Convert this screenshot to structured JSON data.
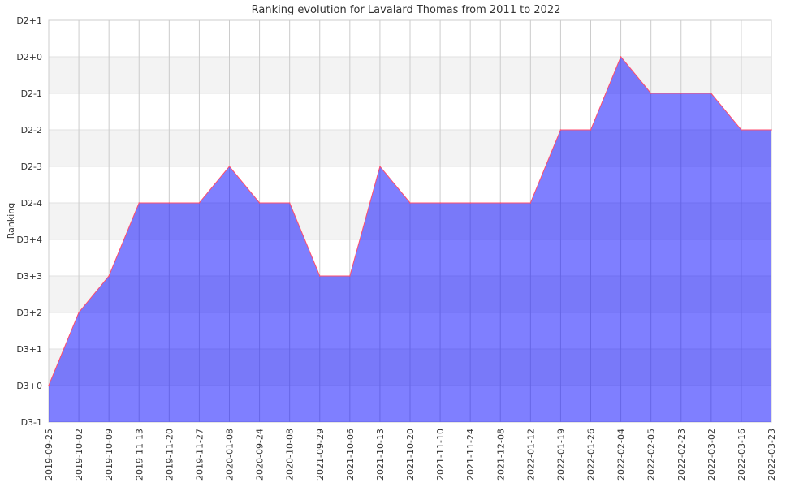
{
  "chart_data": {
    "type": "area",
    "title": "Ranking evolution for Lavalard Thomas from 2011 to 2022",
    "xlabel": "",
    "ylabel": "Ranking",
    "y_ticks": [
      "D3-1",
      "D3+0",
      "D3+1",
      "D3+2",
      "D3+3",
      "D3+4",
      "D2-4",
      "D2-3",
      "D2-2",
      "D2-1",
      "D2+0",
      "D2+1"
    ],
    "ylim": [
      0,
      11
    ],
    "grid": true,
    "categories": [
      "2019-09-25",
      "2019-10-02",
      "2019-10-09",
      "2019-11-13",
      "2019-11-20",
      "2019-11-27",
      "2020-01-08",
      "2020-09-24",
      "2020-10-08",
      "2021-09-29",
      "2021-10-06",
      "2021-10-13",
      "2021-10-20",
      "2021-11-10",
      "2021-11-24",
      "2021-12-08",
      "2022-01-12",
      "2022-01-19",
      "2022-01-26",
      "2022-02-04",
      "2022-02-05",
      "2022-02-23",
      "2022-03-02",
      "2022-03-16",
      "2022-03-23"
    ],
    "series": [
      {
        "name": "Ranking",
        "values_note_index_into_y_ticks": true,
        "values": [
          1,
          3,
          4,
          6,
          6,
          6,
          7,
          6,
          6,
          4,
          4,
          7,
          6,
          6,
          6,
          6,
          6,
          8,
          8,
          10,
          9,
          9,
          9,
          8,
          8
        ],
        "labels": [
          "D3+0",
          "D3+2",
          "D3+3",
          "D2-4",
          "D2-4",
          "D2-4",
          "D2-3",
          "D2-4",
          "D2-4",
          "D3+3",
          "D3+3",
          "D2-3",
          "D2-4",
          "D2-4",
          "D2-4",
          "D2-4",
          "D2-4",
          "D2-2",
          "D2-2",
          "D2+0",
          "D2-1",
          "D2-1",
          "D2-1",
          "D2-2",
          "D2-2"
        ]
      }
    ],
    "colors": {
      "fill": "#0000ff",
      "line": "#ff4d6d",
      "band": "#f3f3f3",
      "grid": "#cccccc"
    }
  }
}
